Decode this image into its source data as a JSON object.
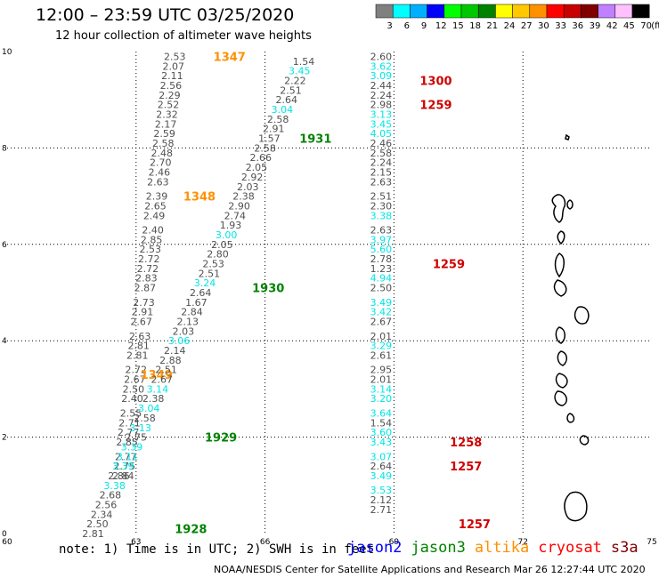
{
  "header": {
    "title": "12:00 – 23:59 UTC 03/25/2020",
    "subtitle": "12 hour collection of altimeter wave heights"
  },
  "color_scale": {
    "unit_label": "(ft)",
    "ticks": [
      "3",
      "6",
      "9",
      "12",
      "15",
      "18",
      "21",
      "24",
      "27",
      "30",
      "33",
      "36",
      "39",
      "42",
      "45",
      "70"
    ],
    "colors": [
      "#808080",
      "#00ffff",
      "#00b0ff",
      "#0000ff",
      "#00ff00",
      "#00c800",
      "#008200",
      "#ffff00",
      "#ffc800",
      "#ff9000",
      "#ff0000",
      "#c80000",
      "#800000",
      "#c080ff",
      "#ffc0ff",
      "#000000"
    ]
  },
  "footer": {
    "note": "note: 1) Time is in UTC; 2) SWH is in feet",
    "legend": [
      {
        "label": "jason2",
        "color": "#0000ff"
      },
      {
        "label": "jason3",
        "color": "#008200"
      },
      {
        "label": "altika",
        "color": "#ff9000"
      },
      {
        "label": "cryosat",
        "color": "#ff0000"
      },
      {
        "label": "s3a",
        "color": "#800000"
      }
    ],
    "credit": "NOAA/NESDIS Center for Satellite Applications and Research   Mar 26 12:27:44 UTC 2020"
  },
  "chart_data": {
    "type": "scatter",
    "x_ticks": [
      "60",
      "63",
      "66",
      "69",
      "72",
      "75"
    ],
    "y_ticks": [
      "0",
      "2",
      "4",
      "6",
      "8",
      "10"
    ],
    "xlim": [
      60,
      75
    ],
    "ylim": [
      0,
      10
    ],
    "grid": true,
    "tracks": [
      {
        "name": "altika",
        "time_labels": [
          {
            "text": "1347",
            "x": 64.8,
            "y": 9.9
          },
          {
            "text": "1348",
            "x": 64.1,
            "y": 7.0
          },
          {
            "text": "1349",
            "x": 63.1,
            "y": 3.3
          }
        ],
        "points": [
          {
            "x": 63.9,
            "y": 9.9,
            "v": "2.53"
          },
          {
            "x": 63.87,
            "y": 9.7,
            "v": "2.07"
          },
          {
            "x": 63.84,
            "y": 9.5,
            "v": "2.11"
          },
          {
            "x": 63.81,
            "y": 9.3,
            "v": "2.56"
          },
          {
            "x": 63.78,
            "y": 9.1,
            "v": "2.29"
          },
          {
            "x": 63.75,
            "y": 8.9,
            "v": "2.52"
          },
          {
            "x": 63.72,
            "y": 8.7,
            "v": "2.32"
          },
          {
            "x": 63.69,
            "y": 8.5,
            "v": "2.17"
          },
          {
            "x": 63.66,
            "y": 8.3,
            "v": "2.59"
          },
          {
            "x": 63.63,
            "y": 8.1,
            "v": "2.58"
          },
          {
            "x": 63.6,
            "y": 7.9,
            "v": "2.48"
          },
          {
            "x": 63.57,
            "y": 7.7,
            "v": "2.70"
          },
          {
            "x": 63.54,
            "y": 7.5,
            "v": "2.46"
          },
          {
            "x": 63.51,
            "y": 7.3,
            "v": "2.63"
          },
          {
            "x": 63.48,
            "y": 7.0,
            "v": "2.39"
          },
          {
            "x": 63.45,
            "y": 6.8,
            "v": "2.65"
          },
          {
            "x": 63.42,
            "y": 6.6,
            "v": "2.49"
          },
          {
            "x": 63.39,
            "y": 6.3,
            "v": "2.40"
          },
          {
            "x": 63.36,
            "y": 6.1,
            "v": "2.85"
          },
          {
            "x": 63.33,
            "y": 5.9,
            "v": "2.53"
          },
          {
            "x": 63.3,
            "y": 5.7,
            "v": "2.72"
          },
          {
            "x": 63.27,
            "y": 5.5,
            "v": "2.72"
          },
          {
            "x": 63.24,
            "y": 5.3,
            "v": "2.83"
          },
          {
            "x": 63.21,
            "y": 5.1,
            "v": "2.87"
          },
          {
            "x": 63.18,
            "y": 4.8,
            "v": "2.73"
          },
          {
            "x": 63.15,
            "y": 4.6,
            "v": "2.91"
          },
          {
            "x": 63.12,
            "y": 4.4,
            "v": "2.67"
          },
          {
            "x": 63.09,
            "y": 4.1,
            "v": "2.63"
          },
          {
            "x": 63.06,
            "y": 3.9,
            "v": "2.81"
          },
          {
            "x": 63.03,
            "y": 3.7,
            "v": "2.81"
          },
          {
            "x": 63.0,
            "y": 3.4,
            "v": "2.72"
          },
          {
            "x": 62.97,
            "y": 3.2,
            "v": "2.67"
          },
          {
            "x": 62.94,
            "y": 3.0,
            "v": "2.50"
          },
          {
            "x": 62.91,
            "y": 2.8,
            "v": "2.40"
          },
          {
            "x": 62.88,
            "y": 2.5,
            "v": "2.55"
          },
          {
            "x": 62.85,
            "y": 2.3,
            "v": "2.71"
          },
          {
            "x": 62.82,
            "y": 2.1,
            "v": "2.77"
          },
          {
            "x": 62.79,
            "y": 1.9,
            "v": "2.85"
          },
          {
            "x": 62.76,
            "y": 1.6,
            "v": "2.77"
          },
          {
            "x": 62.73,
            "y": 1.4,
            "v": "2.75"
          },
          {
            "x": 62.7,
            "y": 1.2,
            "v": "2.84"
          }
        ]
      },
      {
        "name": "jason3",
        "time_labels": [
          {
            "text": "1931",
            "x": 66.8,
            "y": 8.2
          },
          {
            "text": "1930",
            "x": 65.7,
            "y": 5.1
          },
          {
            "text": "1929",
            "x": 64.6,
            "y": 2.0
          },
          {
            "text": "1928",
            "x": 63.9,
            "y": 0.1
          }
        ],
        "points": [
          {
            "x": 66.9,
            "y": 9.8,
            "v": "1.54"
          },
          {
            "x": 66.8,
            "y": 9.6,
            "v": "3.45"
          },
          {
            "x": 66.7,
            "y": 9.4,
            "v": "2.22"
          },
          {
            "x": 66.6,
            "y": 9.2,
            "v": "2.51"
          },
          {
            "x": 66.5,
            "y": 9.0,
            "v": "2.64"
          },
          {
            "x": 66.4,
            "y": 8.8,
            "v": "3.04"
          },
          {
            "x": 66.3,
            "y": 8.6,
            "v": "2.58"
          },
          {
            "x": 66.2,
            "y": 8.4,
            "v": "2.91"
          },
          {
            "x": 66.1,
            "y": 8.2,
            "v": "1.57"
          },
          {
            "x": 66.0,
            "y": 8.0,
            "v": "2.58"
          },
          {
            "x": 65.9,
            "y": 7.8,
            "v": "2.66"
          },
          {
            "x": 65.8,
            "y": 7.6,
            "v": "2.05"
          },
          {
            "x": 65.7,
            "y": 7.4,
            "v": "2.92"
          },
          {
            "x": 65.6,
            "y": 7.2,
            "v": "2.03"
          },
          {
            "x": 65.5,
            "y": 7.0,
            "v": "2.38"
          },
          {
            "x": 65.4,
            "y": 6.8,
            "v": "2.90"
          },
          {
            "x": 65.3,
            "y": 6.6,
            "v": "2.74"
          },
          {
            "x": 65.2,
            "y": 6.4,
            "v": "1.93"
          },
          {
            "x": 65.1,
            "y": 6.2,
            "v": "3.00"
          },
          {
            "x": 65.0,
            "y": 6.0,
            "v": "2.05"
          },
          {
            "x": 64.9,
            "y": 5.8,
            "v": "2.80"
          },
          {
            "x": 64.8,
            "y": 5.6,
            "v": "2.53"
          },
          {
            "x": 64.7,
            "y": 5.4,
            "v": "2.51"
          },
          {
            "x": 64.6,
            "y": 5.2,
            "v": "3.24"
          },
          {
            "x": 64.5,
            "y": 5.0,
            "v": "2.64"
          },
          {
            "x": 64.4,
            "y": 4.8,
            "v": "1.67"
          },
          {
            "x": 64.3,
            "y": 4.6,
            "v": "2.84"
          },
          {
            "x": 64.2,
            "y": 4.4,
            "v": "2.13"
          },
          {
            "x": 64.1,
            "y": 4.2,
            "v": "2.03"
          },
          {
            "x": 64.0,
            "y": 4.0,
            "v": "3.06"
          },
          {
            "x": 63.9,
            "y": 3.8,
            "v": "2.14"
          },
          {
            "x": 63.8,
            "y": 3.6,
            "v": "2.88"
          },
          {
            "x": 63.7,
            "y": 3.4,
            "v": "2.51"
          },
          {
            "x": 63.6,
            "y": 3.2,
            "v": "2.67"
          },
          {
            "x": 63.5,
            "y": 3.0,
            "v": "3.14"
          },
          {
            "x": 63.4,
            "y": 2.8,
            "v": "2.38"
          },
          {
            "x": 63.3,
            "y": 2.6,
            "v": "3.04"
          },
          {
            "x": 63.2,
            "y": 2.4,
            "v": "2.58"
          },
          {
            "x": 63.1,
            "y": 2.2,
            "v": "3.13"
          },
          {
            "x": 63.0,
            "y": 2.0,
            "v": "2.75"
          },
          {
            "x": 62.9,
            "y": 1.8,
            "v": "3.39"
          },
          {
            "x": 62.8,
            "y": 1.6,
            "v": "3.11"
          },
          {
            "x": 62.7,
            "y": 1.4,
            "v": "3.39"
          },
          {
            "x": 62.6,
            "y": 1.2,
            "v": "2.86"
          },
          {
            "x": 62.5,
            "y": 1.0,
            "v": "3.38"
          },
          {
            "x": 62.4,
            "y": 0.8,
            "v": "2.68"
          },
          {
            "x": 62.3,
            "y": 0.6,
            "v": "2.56"
          },
          {
            "x": 62.2,
            "y": 0.4,
            "v": "2.34"
          },
          {
            "x": 62.1,
            "y": 0.2,
            "v": "2.50"
          },
          {
            "x": 62.0,
            "y": 0.0,
            "v": "2.81"
          }
        ]
      },
      {
        "name": "cryosat",
        "time_labels": [
          {
            "text": "1300",
            "x": 69.6,
            "y": 9.4
          },
          {
            "text": "1259",
            "x": 69.6,
            "y": 8.9
          },
          {
            "text": "1259",
            "x": 69.9,
            "y": 5.6
          },
          {
            "text": "1258",
            "x": 70.3,
            "y": 1.9
          },
          {
            "text": "1257",
            "x": 70.3,
            "y": 1.4
          },
          {
            "text": "1257",
            "x": 70.5,
            "y": 0.2
          }
        ],
        "points": [
          {
            "x": 68.7,
            "y": 9.9,
            "v": "2.60"
          },
          {
            "x": 68.7,
            "y": 9.7,
            "v": "3.62"
          },
          {
            "x": 68.7,
            "y": 9.5,
            "v": "3.09"
          },
          {
            "x": 68.7,
            "y": 9.3,
            "v": "2.44"
          },
          {
            "x": 68.7,
            "y": 9.1,
            "v": "2.24"
          },
          {
            "x": 68.7,
            "y": 8.9,
            "v": "2.98"
          },
          {
            "x": 68.7,
            "y": 8.7,
            "v": "3.13"
          },
          {
            "x": 68.7,
            "y": 8.5,
            "v": "3.45"
          },
          {
            "x": 68.7,
            "y": 8.3,
            "v": "4.05"
          },
          {
            "x": 68.7,
            "y": 8.1,
            "v": "2.46"
          },
          {
            "x": 68.7,
            "y": 7.9,
            "v": "2.58"
          },
          {
            "x": 68.7,
            "y": 7.7,
            "v": "2.24"
          },
          {
            "x": 68.7,
            "y": 7.5,
            "v": "2.15"
          },
          {
            "x": 68.7,
            "y": 7.3,
            "v": "2.63"
          },
          {
            "x": 68.7,
            "y": 7.0,
            "v": "2.51"
          },
          {
            "x": 68.7,
            "y": 6.8,
            "v": "2.30"
          },
          {
            "x": 68.7,
            "y": 6.6,
            "v": "3.38"
          },
          {
            "x": 68.7,
            "y": 6.3,
            "v": "2.63"
          },
          {
            "x": 68.7,
            "y": 6.1,
            "v": "3.97"
          },
          {
            "x": 68.7,
            "y": 5.9,
            "v": "5.60"
          },
          {
            "x": 68.7,
            "y": 5.7,
            "v": "2.78"
          },
          {
            "x": 68.7,
            "y": 5.5,
            "v": "1.23"
          },
          {
            "x": 68.7,
            "y": 5.3,
            "v": "4.94"
          },
          {
            "x": 68.7,
            "y": 5.1,
            "v": "2.50"
          },
          {
            "x": 68.7,
            "y": 4.8,
            "v": "3.49"
          },
          {
            "x": 68.7,
            "y": 4.6,
            "v": "3.42"
          },
          {
            "x": 68.7,
            "y": 4.4,
            "v": "2.67"
          },
          {
            "x": 68.7,
            "y": 4.1,
            "v": "2.01"
          },
          {
            "x": 68.7,
            "y": 3.9,
            "v": "3.29"
          },
          {
            "x": 68.7,
            "y": 3.7,
            "v": "2.61"
          },
          {
            "x": 68.7,
            "y": 3.4,
            "v": "2.95"
          },
          {
            "x": 68.7,
            "y": 3.2,
            "v": "2.01"
          },
          {
            "x": 68.7,
            "y": 3.0,
            "v": "3.14"
          },
          {
            "x": 68.7,
            "y": 2.8,
            "v": "3.20"
          },
          {
            "x": 68.7,
            "y": 2.5,
            "v": "3.64"
          },
          {
            "x": 68.7,
            "y": 2.3,
            "v": "1.54"
          },
          {
            "x": 68.7,
            "y": 2.1,
            "v": "3.60"
          },
          {
            "x": 68.7,
            "y": 1.9,
            "v": "3.43"
          },
          {
            "x": 68.7,
            "y": 1.6,
            "v": "3.07"
          },
          {
            "x": 68.7,
            "y": 1.4,
            "v": "2.64"
          },
          {
            "x": 68.7,
            "y": 1.2,
            "v": "3.49"
          },
          {
            "x": 68.7,
            "y": 0.9,
            "v": "3.53"
          },
          {
            "x": 68.7,
            "y": 0.7,
            "v": "2.12"
          },
          {
            "x": 68.7,
            "y": 0.5,
            "v": "2.71"
          }
        ]
      }
    ]
  }
}
